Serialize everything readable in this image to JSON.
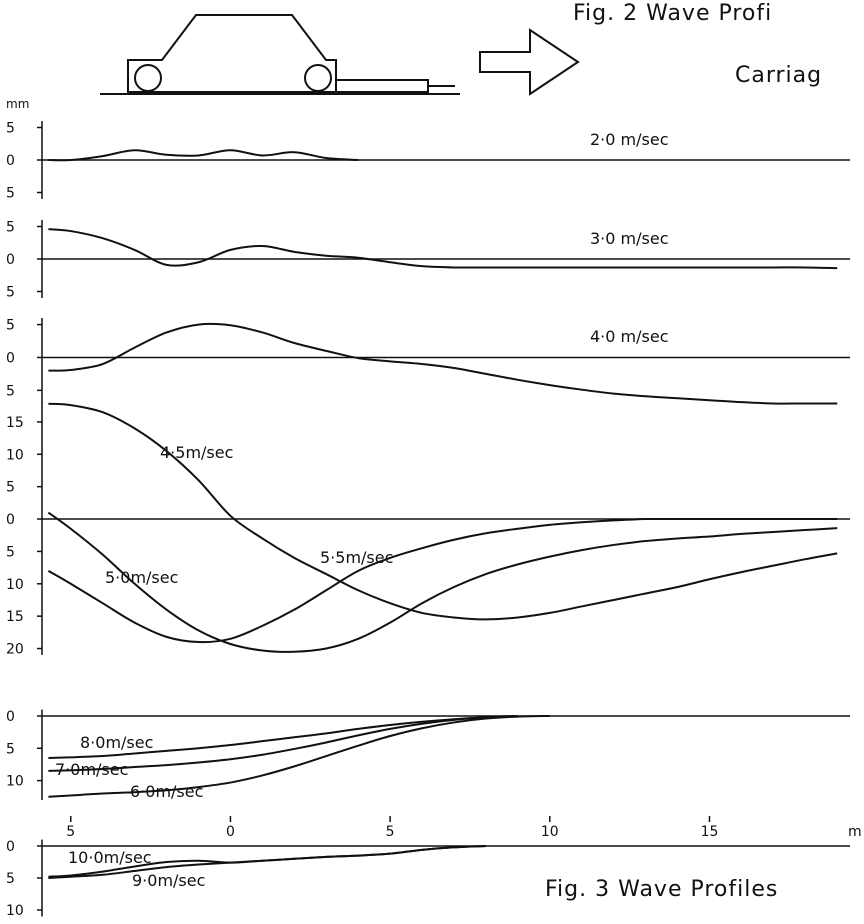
{
  "figure_2": {
    "title": "Fig. 2   Wave Profi",
    "caption": "Carriag"
  },
  "figure_3": {
    "title": "Fig. 3   Wave Profiles"
  },
  "chart_data": [
    {
      "type": "line",
      "ylabel": "mm",
      "x": [
        -5.7,
        -5,
        -4,
        -3,
        -2,
        -1,
        0,
        1,
        2,
        3,
        4,
        5,
        6,
        7,
        8,
        9,
        10,
        11,
        12,
        13,
        14,
        15,
        16,
        17,
        18,
        19
      ],
      "xlim": [
        -5.9,
        19.4
      ],
      "ylim": [
        -6,
        6
      ],
      "yticks": [
        5,
        0,
        {
          "value": -5,
          "label": "5"
        }
      ],
      "series": [
        {
          "name": "2·0 m/sec",
          "color": "#111111",
          "values": [
            0,
            0,
            0.6,
            1.5,
            0.8,
            0.7,
            1.5,
            0.7,
            1.2,
            0.3,
            0,
            null,
            null,
            null,
            null,
            null,
            null,
            null,
            null,
            null,
            null,
            null,
            null,
            null,
            null,
            null
          ]
        }
      ]
    },
    {
      "type": "line",
      "x": [
        -5.7,
        -5,
        -4,
        -3,
        -2,
        -1,
        0,
        1,
        2,
        3,
        4,
        5,
        6,
        7,
        8,
        9,
        10,
        11,
        12,
        13,
        14,
        15,
        16,
        17,
        18,
        19
      ],
      "xlim": [
        -5.9,
        19.4
      ],
      "ylim": [
        -6,
        6
      ],
      "yticks": [
        5,
        0,
        {
          "value": -5,
          "label": "5"
        }
      ],
      "series": [
        {
          "name": "3·0 m/sec",
          "color": "#111111",
          "values": [
            4.6,
            4.3,
            3.2,
            1.4,
            -0.9,
            -0.5,
            1.4,
            2.0,
            1.1,
            0.5,
            0.2,
            -0.5,
            -1.1,
            -1.3,
            -1.3,
            -1.3,
            -1.3,
            -1.3,
            -1.3,
            -1.3,
            -1.3,
            -1.3,
            -1.3,
            -1.3,
            -1.3,
            -1.4
          ]
        }
      ]
    },
    {
      "type": "line",
      "x": [
        -5.7,
        -5,
        -4,
        -3,
        -2,
        -1,
        0,
        1,
        2,
        3,
        4,
        5,
        6,
        7,
        8,
        9,
        10,
        11,
        12,
        13,
        14,
        15,
        16,
        17,
        18,
        19
      ],
      "xlim": [
        -5.9,
        19.4
      ],
      "ylim": [
        -7,
        6
      ],
      "yticks": [
        5,
        0,
        {
          "value": -5,
          "label": "5"
        }
      ],
      "series": [
        {
          "name": "4·0 m/sec",
          "color": "#111111",
          "values": [
            -2,
            -1.9,
            -1,
            1.5,
            3.8,
            5.0,
            4.9,
            3.8,
            2.2,
            1.0,
            -0.1,
            -0.6,
            -1.0,
            -1.6,
            -2.5,
            -3.4,
            -4.2,
            -4.9,
            -5.5,
            -5.9,
            -6.2,
            -6.5,
            -6.8,
            -7.0,
            -7.0,
            -7.0
          ]
        }
      ]
    },
    {
      "type": "line",
      "x": [
        -5.7,
        -5,
        -4,
        -3,
        -2,
        -1,
        0,
        1,
        2,
        3,
        4,
        5,
        6,
        7,
        8,
        9,
        10,
        11,
        12,
        13,
        14,
        15,
        16,
        17,
        18,
        19
      ],
      "xlim": [
        -5.9,
        19.4
      ],
      "ylim": [
        -21,
        18
      ],
      "yticks": [
        15,
        10,
        5,
        0,
        {
          "value": -5,
          "label": "5"
        },
        {
          "value": -10,
          "label": "10"
        },
        {
          "value": -15,
          "label": "15"
        },
        {
          "value": -20,
          "label": "20"
        }
      ],
      "series": [
        {
          "name": "4·5m/sec",
          "color": "#111111",
          "values": [
            17.8,
            17.6,
            16.5,
            14,
            10.5,
            6,
            0.5,
            -3,
            -6,
            -8.5,
            -11,
            -13,
            -14.5,
            -15.2,
            -15.5,
            -15.2,
            -14.5,
            -13.5,
            -12.5,
            -11.5,
            -10.5,
            -9.3,
            -8.2,
            -7.2,
            -6.2,
            -5.3
          ]
        },
        {
          "name": "5·0m/sec",
          "color": "#111111",
          "values": [
            1,
            -1.5,
            -5.5,
            -10,
            -14,
            -17.2,
            -19.3,
            -20.3,
            -20.5,
            -20,
            -18.5,
            -16,
            -13,
            -10.5,
            -8.5,
            -7,
            -5.8,
            -4.8,
            -4,
            -3.4,
            -3,
            -2.7,
            -2.3,
            -2,
            -1.7,
            -1.4
          ]
        },
        {
          "name": "5·5m/sec",
          "color": "#111111",
          "values": [
            -8,
            -10,
            -13,
            -16,
            -18.2,
            -19,
            -18.5,
            -16.5,
            -14,
            -11,
            -8,
            -6,
            -4.5,
            -3.2,
            -2.2,
            -1.5,
            -0.9,
            -0.5,
            -0.2,
            0,
            0,
            0,
            0,
            0,
            0,
            0
          ]
        }
      ]
    },
    {
      "type": "line",
      "x": [
        -5.7,
        -5,
        -4,
        -3,
        -2,
        -1,
        0,
        1,
        2,
        3,
        4,
        5,
        6,
        7,
        8,
        9,
        10,
        11,
        12,
        13,
        14,
        15,
        16,
        17,
        18,
        19
      ],
      "xlim": [
        -5.9,
        19.4
      ],
      "ylim": [
        -13,
        1
      ],
      "yticks": [
        0,
        {
          "value": -5,
          "label": "5"
        },
        {
          "value": -10,
          "label": "10"
        }
      ],
      "series": [
        {
          "name": "8·0m/sec",
          "color": "#111111",
          "values": [
            -6.5,
            -6.4,
            -6.2,
            -5.8,
            -5.4,
            -5,
            -4.5,
            -3.9,
            -3.3,
            -2.7,
            -2,
            -1.4,
            -0.9,
            -0.5,
            -0.2,
            0,
            null,
            null,
            null,
            null,
            null,
            null,
            null,
            null,
            null,
            null
          ]
        },
        {
          "name": "7·0m/sec",
          "color": "#111111",
          "values": [
            -8.5,
            -8.4,
            -8.2,
            -7.9,
            -7.6,
            -7.2,
            -6.7,
            -6,
            -5.1,
            -4.1,
            -3,
            -2,
            -1.2,
            -0.6,
            -0.2,
            0,
            null,
            null,
            null,
            null,
            null,
            null,
            null,
            null,
            null,
            null
          ]
        },
        {
          "name": "6·0m/sec",
          "color": "#111111",
          "values": [
            -12.5,
            -12.3,
            -12,
            -11.8,
            -11.5,
            -11,
            -10.3,
            -9.2,
            -7.8,
            -6.2,
            -4.6,
            -3.1,
            -1.9,
            -1,
            -0.4,
            -0.1,
            0,
            null,
            null,
            null,
            null,
            null,
            null,
            null,
            null,
            null
          ]
        }
      ]
    },
    {
      "type": "line",
      "xlabel": "m",
      "x": [
        -5.7,
        -5,
        -4,
        -3,
        -2,
        -1,
        0,
        1,
        2,
        3,
        4,
        5,
        6,
        7,
        8,
        9,
        10,
        11,
        12,
        13,
        14,
        15,
        16,
        17,
        18,
        19
      ],
      "xlim": [
        -5.9,
        19.4
      ],
      "xticks": [
        {
          "value": -5,
          "label": "5"
        },
        0,
        5,
        10,
        15
      ],
      "ylim": [
        -11,
        1
      ],
      "yticks": [
        0,
        {
          "value": -5,
          "label": "5"
        },
        {
          "value": -10,
          "label": "10"
        }
      ],
      "series": [
        {
          "name": "10·0m/sec",
          "color": "#111111",
          "values": [
            -4.8,
            -4.6,
            -4,
            -3.2,
            -2.5,
            -2.3,
            -2.6,
            -2.3,
            -2,
            -1.7,
            -1.5,
            -1.2,
            -0.6,
            -0.2,
            0,
            null,
            null,
            null,
            null,
            null,
            null,
            null,
            null,
            null,
            null,
            null
          ]
        },
        {
          "name": "9·0m/sec",
          "color": "#111111",
          "values": [
            -5,
            -4.8,
            -4.5,
            -3.9,
            -3.3,
            -2.9,
            -2.6,
            -2.3,
            -2,
            -1.7,
            -1.5,
            -1.2,
            -0.6,
            -0.2,
            0,
            null,
            null,
            null,
            null,
            null,
            null,
            null,
            null,
            null,
            null,
            null
          ]
        }
      ]
    }
  ]
}
